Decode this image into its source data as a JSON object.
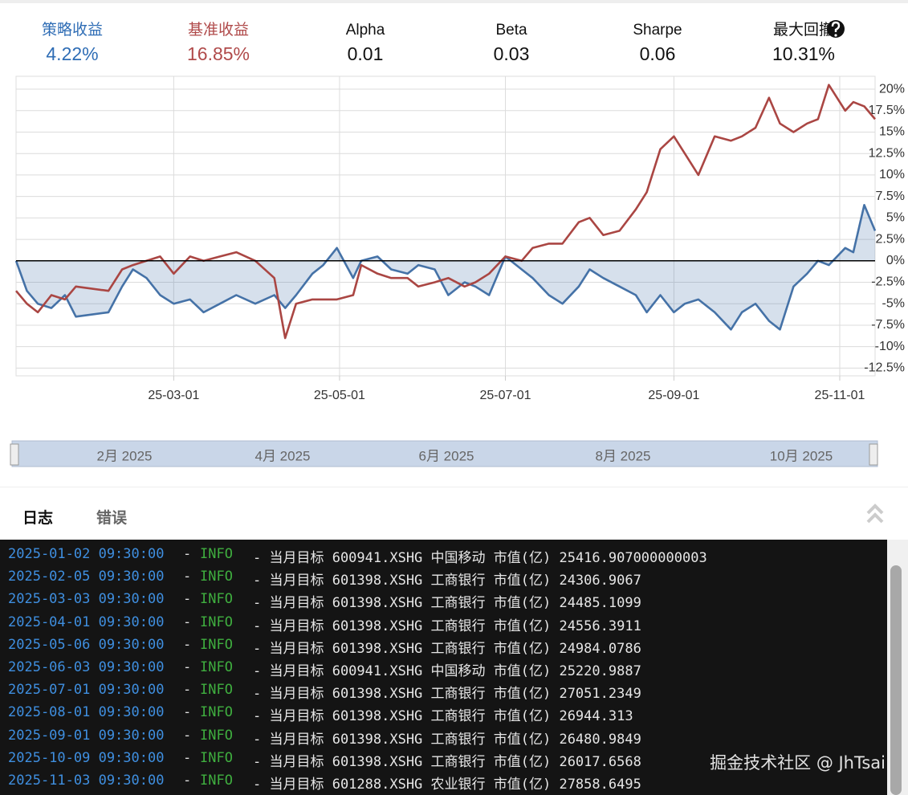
{
  "stats": [
    {
      "label": "策略收益",
      "value": "4.22%"
    },
    {
      "label": "基准收益",
      "value": "16.85%"
    },
    {
      "label": "Alpha",
      "value": "0.01"
    },
    {
      "label": "Beta",
      "value": "0.03"
    },
    {
      "label": "Sharpe",
      "value": "0.06"
    },
    {
      "label": "最大回撤",
      "value": "10.31%"
    }
  ],
  "chart_data": {
    "type": "line",
    "zero_line": true,
    "grid": true,
    "x": [
      "25-01-02",
      "25-01-06",
      "25-01-10",
      "25-01-15",
      "25-01-20",
      "25-01-24",
      "25-02-05",
      "25-02-10",
      "25-02-14",
      "25-02-19",
      "25-02-24",
      "25-03-01",
      "25-03-07",
      "25-03-12",
      "25-03-18",
      "25-03-24",
      "25-03-31",
      "25-04-07",
      "25-04-11",
      "25-04-15",
      "25-04-21",
      "25-04-25",
      "25-04-30",
      "25-05-06",
      "25-05-09",
      "25-05-15",
      "25-05-20",
      "25-05-26",
      "25-05-30",
      "25-06-05",
      "25-06-10",
      "25-06-16",
      "25-06-20",
      "25-06-25",
      "25-07-01",
      "25-07-07",
      "25-07-11",
      "25-07-17",
      "25-07-22",
      "25-07-28",
      "25-08-01",
      "25-08-06",
      "25-08-12",
      "25-08-18",
      "25-08-22",
      "25-08-27",
      "25-09-01",
      "25-09-05",
      "25-09-10",
      "25-09-16",
      "25-09-22",
      "25-09-26",
      "25-10-01",
      "25-10-06",
      "25-10-10",
      "25-10-15",
      "25-10-20",
      "25-10-24",
      "25-10-28",
      "25-11-03",
      "25-11-06",
      "25-11-10",
      "25-11-14"
    ],
    "series": [
      {
        "name": "策略收益",
        "color": "#4572a7",
        "area": true,
        "values": [
          0,
          -3.5,
          -5,
          -5.5,
          -4,
          -6.5,
          -6,
          -3,
          -1,
          -2,
          -4,
          -5,
          -4.5,
          -6,
          -5,
          -4,
          -5,
          -4,
          -5.5,
          -4,
          -1.5,
          -0.5,
          1.5,
          -2,
          0,
          0.5,
          -1,
          -1.5,
          -0.5,
          -1,
          -4,
          -2.5,
          -3,
          -4,
          0.5,
          -1,
          -2,
          -4,
          -5,
          -3,
          -1,
          -2,
          -3,
          -4,
          -6,
          -4,
          -6,
          -5,
          -4.5,
          -6,
          -8,
          -6,
          -5,
          -7,
          -8,
          -3,
          -1.5,
          0,
          -0.5,
          1.5,
          1,
          6.5,
          3.5
        ]
      },
      {
        "name": "基准收益",
        "color": "#aa4643",
        "values": [
          -3.5,
          -5,
          -6,
          -4,
          -4.5,
          -3,
          -3.5,
          -1,
          -0.5,
          0,
          0.5,
          -1.5,
          0.5,
          0,
          0.5,
          1,
          0,
          -2,
          -9,
          -5,
          -4.5,
          -4.5,
          -4.5,
          -4,
          -0.5,
          -1.5,
          -2,
          -2,
          -3,
          -2.5,
          -2,
          -3,
          -2.5,
          -1.5,
          0.5,
          0,
          1.5,
          2,
          2,
          4.5,
          5,
          3,
          3.5,
          6,
          8,
          13,
          14.5,
          12.5,
          10,
          14.5,
          14,
          14.5,
          15.5,
          19,
          16,
          15,
          16,
          16.5,
          20.5,
          17.5,
          18.5,
          18,
          16.5
        ]
      }
    ],
    "xlim": [
      "25-01-02",
      "25-11-14"
    ],
    "xticks": [
      "25-03-01",
      "25-05-01",
      "25-07-01",
      "25-09-01",
      "25-11-01"
    ],
    "ylim": [
      -13.4,
      21.5
    ],
    "yticks": [
      {
        "value": 20,
        "label": "20%"
      },
      {
        "value": 17.5,
        "label": "17.5%"
      },
      {
        "value": 15,
        "label": "15%"
      },
      {
        "value": 12.5,
        "label": "12.5%"
      },
      {
        "value": 10,
        "label": "10%"
      },
      {
        "value": 7.5,
        "label": "7.5%"
      },
      {
        "value": 5,
        "label": "5%"
      },
      {
        "value": 2.5,
        "label": "2.5%"
      },
      {
        "value": 0,
        "label": "0%"
      },
      {
        "value": -2.5,
        "label": "-2.5%"
      },
      {
        "value": -5,
        "label": "-5%"
      },
      {
        "value": -7.5,
        "label": "-7.5%"
      },
      {
        "value": -10,
        "label": "-10%"
      },
      {
        "value": -12.5,
        "label": "-12.5%"
      }
    ]
  },
  "navigator": {
    "labels": [
      "2月 2025",
      "4月 2025",
      "6月 2025",
      "8月 2025",
      "10月 2025"
    ]
  },
  "tabs": [
    "日志",
    "错误"
  ],
  "log": {
    "rows": [
      {
        "time": "2025-01-02 09:30:00",
        "sep": "-",
        "level": "INFO",
        "message": "- 当月目标 600941.XSHG 中国移动 市值(亿) 25416.907000000003"
      },
      {
        "time": "2025-02-05 09:30:00",
        "sep": "-",
        "level": "INFO",
        "message": "- 当月目标 601398.XSHG 工商银行 市值(亿) 24306.9067"
      },
      {
        "time": "2025-03-03 09:30:00",
        "sep": "-",
        "level": "INFO",
        "message": "- 当月目标 601398.XSHG 工商银行 市值(亿) 24485.1099"
      },
      {
        "time": "2025-04-01 09:30:00",
        "sep": "-",
        "level": "INFO",
        "message": "- 当月目标 601398.XSHG 工商银行 市值(亿) 24556.3911"
      },
      {
        "time": "2025-05-06 09:30:00",
        "sep": "-",
        "level": "INFO",
        "message": "- 当月目标 601398.XSHG 工商银行 市值(亿) 24984.0786"
      },
      {
        "time": "2025-06-03 09:30:00",
        "sep": "-",
        "level": "INFO",
        "message": "- 当月目标 600941.XSHG 中国移动 市值(亿) 25220.9887"
      },
      {
        "time": "2025-07-01 09:30:00",
        "sep": "-",
        "level": "INFO",
        "message": "- 当月目标 601398.XSHG 工商银行 市值(亿) 27051.2349"
      },
      {
        "time": "2025-08-01 09:30:00",
        "sep": "-",
        "level": "INFO",
        "message": "- 当月目标 601398.XSHG 工商银行 市值(亿) 26944.313"
      },
      {
        "time": "2025-09-01 09:30:00",
        "sep": "-",
        "level": "INFO",
        "message": "- 当月目标 601398.XSHG 工商银行 市值(亿) 26480.9849"
      },
      {
        "time": "2025-10-09 09:30:00",
        "sep": "-",
        "level": "INFO",
        "message": "- 当月目标 601398.XSHG 工商银行 市值(亿) 26017.6568"
      },
      {
        "time": "2025-11-03 09:30:00",
        "sep": "-",
        "level": "INFO",
        "message": "- 当月目标 601288.XSHG 农业银行 市值(亿) 27858.6495"
      }
    ]
  },
  "watermark": "掘金技术社区 @ JhTsai"
}
